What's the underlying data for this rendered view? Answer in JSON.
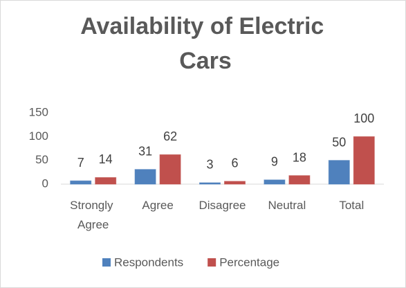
{
  "chart_data": {
    "type": "bar",
    "title": "Availability of Electric Cars",
    "categories": [
      "Strongly Agree",
      "Agree",
      "Disagree",
      "Neutral",
      "Total"
    ],
    "series": [
      {
        "name": "Respondents",
        "color": "#4f81bd",
        "values": [
          7,
          31,
          3,
          9,
          50
        ]
      },
      {
        "name": "Percentage",
        "color": "#c0504d",
        "values": [
          14,
          62,
          6,
          18,
          100
        ]
      }
    ],
    "ylim": [
      0,
      150
    ],
    "yticks": [
      0,
      50,
      100,
      150
    ],
    "grid": false,
    "legend": "bottom"
  }
}
